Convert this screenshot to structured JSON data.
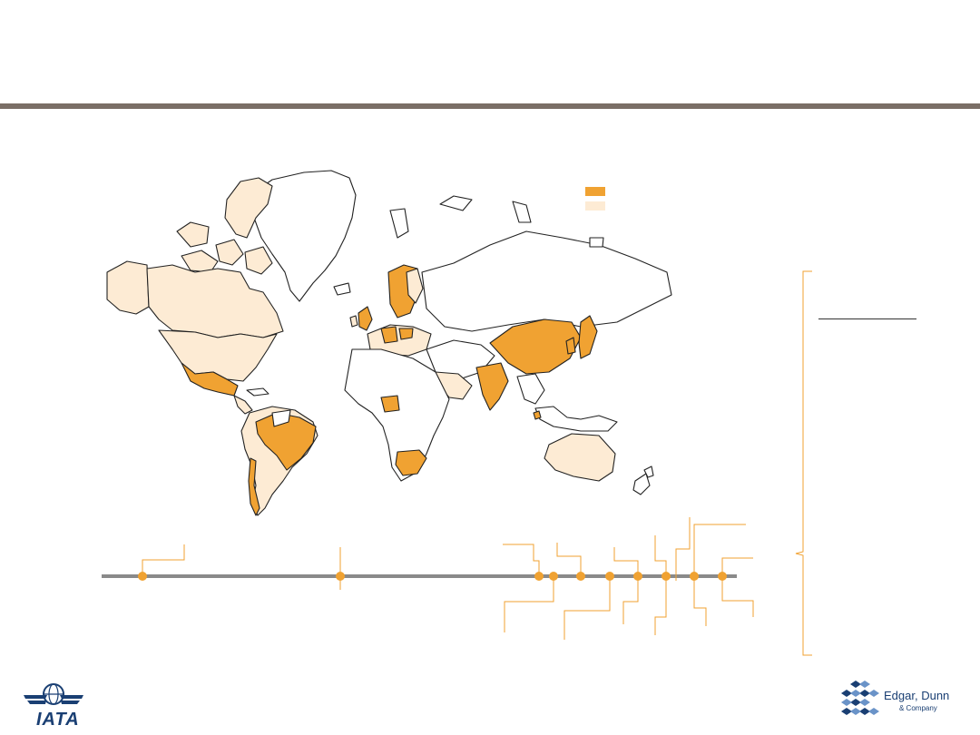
{
  "slide": {
    "title": "",
    "bracket_text": ""
  },
  "legend": {
    "items": [
      {
        "label": "",
        "color": "#f0a232"
      },
      {
        "label": "",
        "color": "#fdebd4"
      }
    ]
  },
  "colors": {
    "highlight": "#f0a232",
    "secondary": "#fdebd4",
    "outline": "#222222",
    "header_rule": "#7a6e66",
    "timeline_line": "#8a8a8a",
    "brand_blue": "#1a3f73"
  },
  "timeline": {
    "milestone_count": 11
  },
  "logos": {
    "left": {
      "text": "IATA",
      "icon": "globe-wings-icon"
    },
    "right": {
      "name": "Edgar, Dunn",
      "sub": "& Company",
      "icon": "cube-pattern-icon"
    }
  }
}
